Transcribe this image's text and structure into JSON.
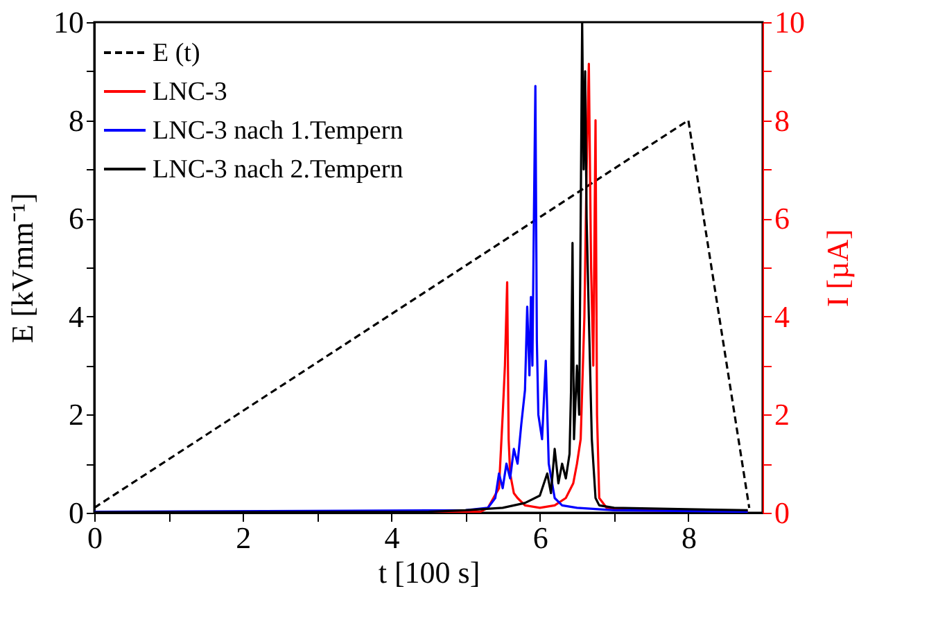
{
  "chart_data": {
    "type": "line",
    "xlabel": "t [100 s]",
    "ylabel": "E [kVmm⁻¹]",
    "y2label": "I [µA]",
    "xlim": [
      0,
      9
    ],
    "ylim": [
      0,
      10
    ],
    "y2lim": [
      0,
      10
    ],
    "xticks": [
      0,
      {
        "value": 1,
        "label": null
      },
      2,
      {
        "value": 3,
        "label": null
      },
      4,
      {
        "value": 5,
        "label": null
      },
      6,
      {
        "value": 7,
        "label": null
      },
      8
    ],
    "yticks": [
      0,
      {
        "value": 1,
        "label": null
      },
      2,
      {
        "value": 3,
        "label": null
      },
      4,
      {
        "value": 5,
        "label": null
      },
      6,
      {
        "value": 7,
        "label": null
      },
      8,
      {
        "value": 9,
        "label": null
      },
      10
    ],
    "y2ticks": [
      0,
      {
        "value": 1,
        "label": null
      },
      2,
      {
        "value": 3,
        "label": null
      },
      4,
      {
        "value": 5,
        "label": null
      },
      6,
      {
        "value": 7,
        "label": null
      },
      8,
      {
        "value": 9,
        "label": null
      },
      10
    ],
    "legend": "top left",
    "grid": false,
    "series": [
      {
        "name": "E (t)",
        "color": "#000000",
        "line_style": "dashed",
        "x": [
          0,
          8,
          8.82
        ],
        "values": [
          0.1,
          8,
          0.1
        ]
      },
      {
        "name": "LNC-3",
        "color": "#ff0000",
        "axis": "y2",
        "x": [
          0,
          5.2,
          5.3,
          5.45,
          5.5,
          5.53,
          5.56,
          5.58,
          5.6,
          5.65,
          5.7,
          5.8,
          6.0,
          6.2,
          6.35,
          6.45,
          6.5,
          6.55,
          6.6,
          6.63,
          6.66,
          6.69,
          6.72,
          6.75,
          6.77,
          6.8,
          6.9,
          7.2,
          8.8
        ],
        "values": [
          0.02,
          0.02,
          0.1,
          0.5,
          2,
          3,
          4.7,
          1.5,
          0.8,
          0.4,
          0.3,
          0.15,
          0.1,
          0.15,
          0.3,
          0.6,
          1.0,
          1.5,
          4,
          7,
          9.15,
          5,
          3,
          8.0,
          2,
          0.3,
          0.1,
          0.05,
          0.03
        ]
      },
      {
        "name": "LNC-3 nach 1.Tempern",
        "color": "#0000ff",
        "axis": "y2",
        "x": [
          0,
          5.0,
          5.3,
          5.4,
          5.45,
          5.5,
          5.55,
          5.6,
          5.65,
          5.7,
          5.75,
          5.8,
          5.83,
          5.86,
          5.88,
          5.9,
          5.92,
          5.94,
          5.96,
          5.98,
          6.03,
          6.08,
          6.12,
          6.2,
          6.3,
          6.5,
          7.0,
          8.8
        ],
        "values": [
          0.02,
          0.05,
          0.1,
          0.3,
          0.8,
          0.5,
          1.0,
          0.7,
          1.3,
          1.0,
          1.8,
          2.5,
          4.2,
          2.8,
          4.4,
          3.0,
          6.0,
          8.7,
          3.5,
          2.0,
          1.5,
          3.1,
          1.0,
          0.3,
          0.15,
          0.1,
          0.05,
          0.02
        ]
      },
      {
        "name": "LNC-3 nach 2.Tempern",
        "color": "#000000",
        "axis": "y2",
        "x": [
          0,
          4.5,
          5.0,
          5.5,
          5.8,
          6.0,
          6.1,
          6.15,
          6.2,
          6.25,
          6.3,
          6.35,
          6.4,
          6.42,
          6.44,
          6.46,
          6.5,
          6.53,
          6.55,
          6.57,
          6.59,
          6.61,
          6.63,
          6.66,
          6.7,
          6.75,
          6.8,
          7.0,
          8.8
        ],
        "values": [
          0.01,
          0.02,
          0.05,
          0.1,
          0.2,
          0.35,
          0.8,
          0.4,
          1.3,
          0.6,
          1.0,
          0.7,
          1.2,
          2.5,
          5.5,
          1.5,
          3,
          2,
          6,
          10,
          7,
          9,
          6,
          4,
          1.5,
          0.3,
          0.15,
          0.1,
          0.05
        ]
      }
    ]
  }
}
